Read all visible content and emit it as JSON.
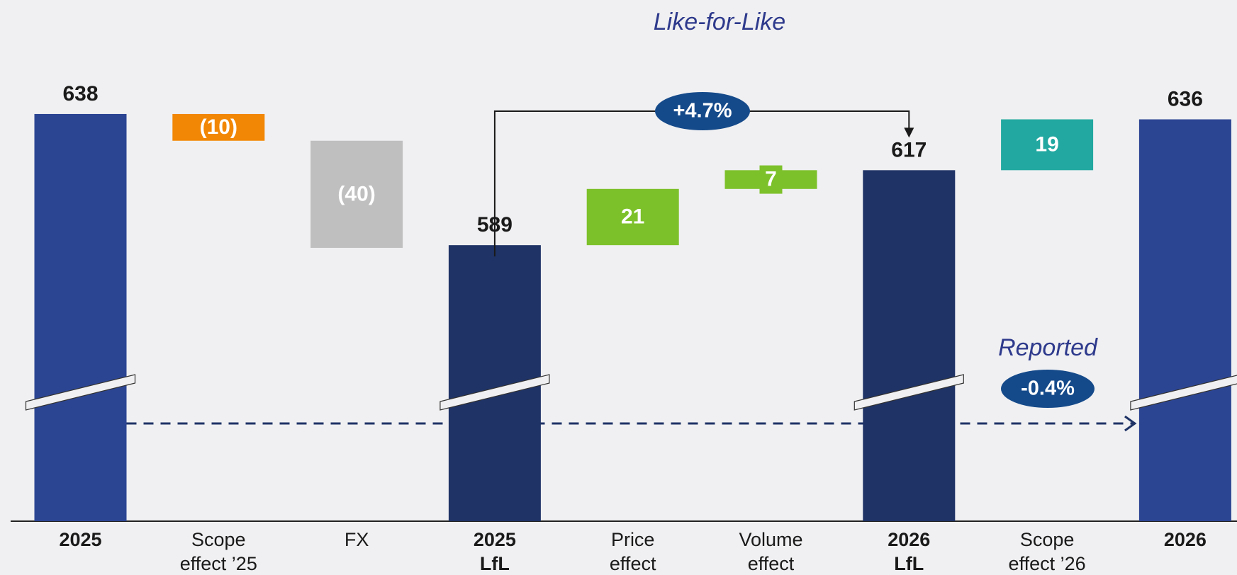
{
  "chart_data": {
    "type": "waterfall",
    "title": "Like-for-Like",
    "categories": [
      [
        "2025"
      ],
      [
        "Scope",
        "effect ’25"
      ],
      [
        "FX"
      ],
      [
        "2025",
        "LfL"
      ],
      [
        "Price",
        "effect"
      ],
      [
        "Volume",
        "effect"
      ],
      [
        "2026",
        "LfL"
      ],
      [
        "Scope",
        "effect ’26"
      ],
      [
        "2026"
      ]
    ],
    "values": [
      638,
      -10,
      -40,
      589,
      21,
      7,
      617,
      19,
      636
    ],
    "value_labels": [
      "638",
      "(10)",
      "(40)",
      "589",
      "21",
      "7",
      "617",
      "19",
      "636"
    ],
    "totals": [
      true,
      false,
      false,
      true,
      false,
      false,
      true,
      false,
      true
    ],
    "colors": [
      "#2c4593",
      "#f28705",
      "#bfbfbf",
      "#1f3366",
      "#7dc12a",
      "#7dc12a",
      "#1f3366",
      "#22a8a0",
      "#2c4593"
    ],
    "annotations": {
      "lfl_change": "+4.7%",
      "reported_label": "Reported",
      "reported_change": "-0.4%"
    }
  }
}
